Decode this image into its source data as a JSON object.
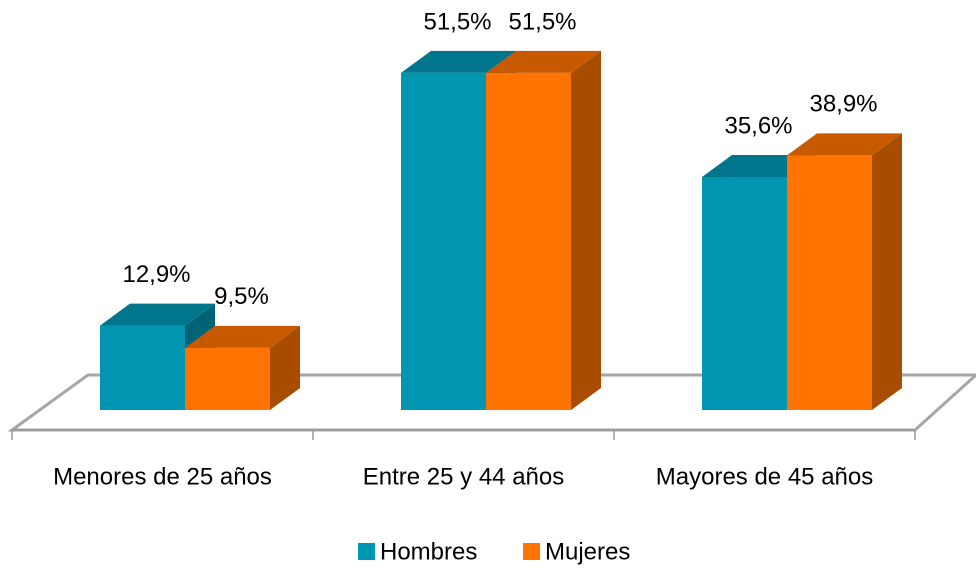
{
  "chart_data": {
    "type": "bar3d",
    "categories": [
      "Menores de 25 años",
      "Entre 25 y 44 años",
      "Mayores de 45 años"
    ],
    "series": [
      {
        "name": "Hombres",
        "color": "#0096b2",
        "values": [
          12.9,
          51.5,
          35.6
        ],
        "value_labels": [
          "12,9%",
          "51,5%",
          "35,6%"
        ]
      },
      {
        "name": "Mujeres",
        "color": "#ff7400",
        "values": [
          9.5,
          51.5,
          38.9
        ],
        "value_labels": [
          "9,5%",
          "51,5%",
          "38,9%"
        ]
      }
    ],
    "ylim": [
      0,
      55
    ],
    "legend": "bottom"
  }
}
